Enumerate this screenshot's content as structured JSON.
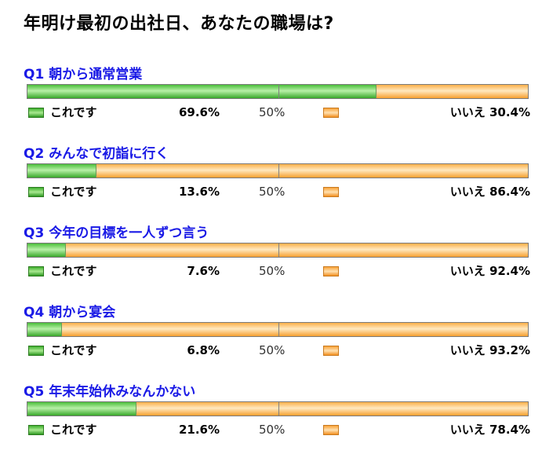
{
  "title": "年明け最初の出社日、あなたの職場は?",
  "colors": {
    "yes": "#46b635",
    "no": "#f7a030",
    "question_text": "#1a1ae6"
  },
  "chart_data": {
    "type": "bar",
    "stacked": true,
    "orientation": "horizontal",
    "title": "年明け最初の出社日、あなたの職場は?",
    "xlim": [
      0,
      100
    ],
    "reference_line": "50%",
    "series": [
      {
        "name": "これです",
        "values": [
          69.6,
          13.6,
          7.6,
          6.8,
          21.6
        ]
      },
      {
        "name": "いいえ",
        "values": [
          30.4,
          86.4,
          92.4,
          93.2,
          78.4
        ]
      }
    ],
    "categories": [
      "Q1 朝から通常営業",
      "Q2 みんなで初詣に行く",
      "Q3 今年の目標を一人ずつ言う",
      "Q4 朝から宴会",
      "Q5 年末年始休みなんかない"
    ]
  },
  "questions": [
    {
      "label": "Q1 朝から通常営業",
      "yes_label": "これです",
      "yes_pct": "69.6%",
      "yes_value": 69.6,
      "mid_label": "50%",
      "no_label": "いいえ",
      "no_pct": "30.4%"
    },
    {
      "label": "Q2 みんなで初詣に行く",
      "yes_label": "これです",
      "yes_pct": "13.6%",
      "yes_value": 13.6,
      "mid_label": "50%",
      "no_label": "いいえ",
      "no_pct": "86.4%"
    },
    {
      "label": "Q3 今年の目標を一人ずつ言う",
      "yes_label": "これです",
      "yes_pct": "7.6%",
      "yes_value": 7.6,
      "mid_label": "50%",
      "no_label": "いいえ",
      "no_pct": "92.4%"
    },
    {
      "label": "Q4 朝から宴会",
      "yes_label": "これです",
      "yes_pct": "6.8%",
      "yes_value": 6.8,
      "mid_label": "50%",
      "no_label": "いいえ",
      "no_pct": "93.2%"
    },
    {
      "label": "Q5 年末年始休みなんかない",
      "yes_label": "これです",
      "yes_pct": "21.6%",
      "yes_value": 21.6,
      "mid_label": "50%",
      "no_label": "いいえ",
      "no_pct": "78.4%"
    }
  ]
}
